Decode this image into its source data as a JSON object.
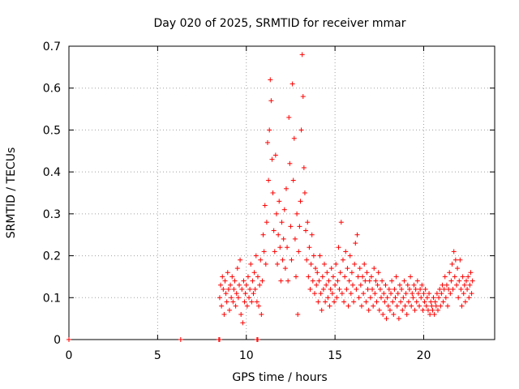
{
  "chart_data": {
    "type": "scatter",
    "title": "Day 020 of 2025, SRMTID for receiver mmar",
    "xlabel": "GPS time / hours",
    "ylabel": "SRMTID / TECUs",
    "xlim": [
      0,
      24
    ],
    "ylim": [
      0,
      0.7
    ],
    "xticks": [
      0,
      5,
      10,
      15,
      20
    ],
    "yticks": [
      0,
      0.1,
      0.2,
      0.3,
      0.4,
      0.5,
      0.6,
      0.7
    ],
    "ytick_labels": [
      "0",
      "0.1",
      "0.2",
      "0.3",
      "0.4",
      "0.5",
      "0.6",
      "0.7"
    ],
    "grid": true,
    "marker": "+",
    "color": "#ff0000",
    "series": [
      {
        "name": "SRMTID",
        "points": [
          [
            0.0,
            0.0
          ],
          [
            6.3,
            0.0
          ],
          [
            8.45,
            0.0
          ],
          [
            8.5,
            0.0
          ],
          [
            10.6,
            0.0
          ],
          [
            10.65,
            0.0
          ],
          [
            8.5,
            0.1
          ],
          [
            8.55,
            0.13
          ],
          [
            8.6,
            0.08
          ],
          [
            8.65,
            0.15
          ],
          [
            8.7,
            0.12
          ],
          [
            8.75,
            0.06
          ],
          [
            8.8,
            0.14
          ],
          [
            8.85,
            0.11
          ],
          [
            8.9,
            0.09
          ],
          [
            8.95,
            0.16
          ],
          [
            9.0,
            0.12
          ],
          [
            9.05,
            0.07
          ],
          [
            9.1,
            0.13
          ],
          [
            9.15,
            0.1
          ],
          [
            9.2,
            0.15
          ],
          [
            9.25,
            0.09
          ],
          [
            9.3,
            0.12
          ],
          [
            9.35,
            0.14
          ],
          [
            9.4,
            0.08
          ],
          [
            9.45,
            0.11
          ],
          [
            9.5,
            0.17
          ],
          [
            9.55,
            0.1
          ],
          [
            9.6,
            0.13
          ],
          [
            9.65,
            0.19
          ],
          [
            9.7,
            0.06
          ],
          [
            9.75,
            0.12
          ],
          [
            9.8,
            0.04
          ],
          [
            9.85,
            0.14
          ],
          [
            9.9,
            0.09
          ],
          [
            9.95,
            0.11
          ],
          [
            10.0,
            0.13
          ],
          [
            10.05,
            0.08
          ],
          [
            10.1,
            0.15
          ],
          [
            10.15,
            0.1
          ],
          [
            10.2,
            0.12
          ],
          [
            10.25,
            0.18
          ],
          [
            10.3,
            0.09
          ],
          [
            10.35,
            0.14
          ],
          [
            10.4,
            0.11
          ],
          [
            10.45,
            0.16
          ],
          [
            10.5,
            0.12
          ],
          [
            10.55,
            0.2
          ],
          [
            10.6,
            0.09
          ],
          [
            10.65,
            0.15
          ],
          [
            10.7,
            0.08
          ],
          [
            10.75,
            0.13
          ],
          [
            10.8,
            0.19
          ],
          [
            10.85,
            0.06
          ],
          [
            10.9,
            0.14
          ],
          [
            10.95,
            0.25
          ],
          [
            11.0,
            0.21
          ],
          [
            11.05,
            0.32
          ],
          [
            11.1,
            0.18
          ],
          [
            11.15,
            0.28
          ],
          [
            11.2,
            0.47
          ],
          [
            11.25,
            0.38
          ],
          [
            11.3,
            0.5
          ],
          [
            11.35,
            0.62
          ],
          [
            11.4,
            0.57
          ],
          [
            11.45,
            0.43
          ],
          [
            11.5,
            0.35
          ],
          [
            11.55,
            0.26
          ],
          [
            11.6,
            0.21
          ],
          [
            11.65,
            0.44
          ],
          [
            11.7,
            0.3
          ],
          [
            11.75,
            0.18
          ],
          [
            11.8,
            0.25
          ],
          [
            11.85,
            0.33
          ],
          [
            11.9,
            0.22
          ],
          [
            11.95,
            0.14
          ],
          [
            12.0,
            0.28
          ],
          [
            12.05,
            0.19
          ],
          [
            12.1,
            0.24
          ],
          [
            12.15,
            0.31
          ],
          [
            12.2,
            0.17
          ],
          [
            12.25,
            0.36
          ],
          [
            12.3,
            0.22
          ],
          [
            12.35,
            0.14
          ],
          [
            12.4,
            0.53
          ],
          [
            12.45,
            0.42
          ],
          [
            12.5,
            0.27
          ],
          [
            12.55,
            0.19
          ],
          [
            12.6,
            0.61
          ],
          [
            12.65,
            0.38
          ],
          [
            12.7,
            0.48
          ],
          [
            12.75,
            0.24
          ],
          [
            12.8,
            0.15
          ],
          [
            12.85,
            0.3
          ],
          [
            12.9,
            0.06
          ],
          [
            12.95,
            0.21
          ],
          [
            13.0,
            0.27
          ],
          [
            13.05,
            0.33
          ],
          [
            13.1,
            0.5
          ],
          [
            13.15,
            0.68
          ],
          [
            13.2,
            0.58
          ],
          [
            13.25,
            0.41
          ],
          [
            13.3,
            0.35
          ],
          [
            13.35,
            0.26
          ],
          [
            13.4,
            0.19
          ],
          [
            13.45,
            0.28
          ],
          [
            13.5,
            0.15
          ],
          [
            13.55,
            0.22
          ],
          [
            13.6,
            0.12
          ],
          [
            13.65,
            0.18
          ],
          [
            13.7,
            0.25
          ],
          [
            13.75,
            0.14
          ],
          [
            13.8,
            0.2
          ],
          [
            13.85,
            0.11
          ],
          [
            13.9,
            0.17
          ],
          [
            13.95,
            0.13
          ],
          [
            14.0,
            0.16
          ],
          [
            14.05,
            0.09
          ],
          [
            14.1,
            0.14
          ],
          [
            14.15,
            0.2
          ],
          [
            14.2,
            0.11
          ],
          [
            14.25,
            0.07
          ],
          [
            14.3,
            0.15
          ],
          [
            14.35,
            0.12
          ],
          [
            14.4,
            0.18
          ],
          [
            14.45,
            0.09
          ],
          [
            14.5,
            0.13
          ],
          [
            14.55,
            0.16
          ],
          [
            14.6,
            0.1
          ],
          [
            14.65,
            0.14
          ],
          [
            14.7,
            0.08
          ],
          [
            14.75,
            0.12
          ],
          [
            14.8,
            0.17
          ],
          [
            14.85,
            0.11
          ],
          [
            14.9,
            0.15
          ],
          [
            14.95,
            0.09
          ],
          [
            15.0,
            0.13
          ],
          [
            15.05,
            0.18
          ],
          [
            15.1,
            0.1
          ],
          [
            15.15,
            0.14
          ],
          [
            15.2,
            0.22
          ],
          [
            15.25,
            0.12
          ],
          [
            15.3,
            0.16
          ],
          [
            15.35,
            0.28
          ],
          [
            15.4,
            0.11
          ],
          [
            15.45,
            0.19
          ],
          [
            15.5,
            0.09
          ],
          [
            15.55,
            0.15
          ],
          [
            15.6,
            0.21
          ],
          [
            15.65,
            0.12
          ],
          [
            15.7,
            0.17
          ],
          [
            15.75,
            0.08
          ],
          [
            15.8,
            0.14
          ],
          [
            15.85,
            0.2
          ],
          [
            15.9,
            0.11
          ],
          [
            15.95,
            0.16
          ],
          [
            16.0,
            0.13
          ],
          [
            16.05,
            0.09
          ],
          [
            16.1,
            0.18
          ],
          [
            16.15,
            0.23
          ],
          [
            16.2,
            0.12
          ],
          [
            16.25,
            0.25
          ],
          [
            16.3,
            0.15
          ],
          [
            16.35,
            0.1
          ],
          [
            16.4,
            0.17
          ],
          [
            16.45,
            0.13
          ],
          [
            16.5,
            0.08
          ],
          [
            16.55,
            0.15
          ],
          [
            16.6,
            0.11
          ],
          [
            16.65,
            0.18
          ],
          [
            16.7,
            0.14
          ],
          [
            16.75,
            0.09
          ],
          [
            16.8,
            0.16
          ],
          [
            16.85,
            0.12
          ],
          [
            16.9,
            0.07
          ],
          [
            16.95,
            0.14
          ],
          [
            17.0,
            0.1
          ],
          [
            17.05,
            0.15
          ],
          [
            17.1,
            0.12
          ],
          [
            17.15,
            0.08
          ],
          [
            17.2,
            0.17
          ],
          [
            17.25,
            0.11
          ],
          [
            17.3,
            0.14
          ],
          [
            17.35,
            0.09
          ],
          [
            17.4,
            0.13
          ],
          [
            17.45,
            0.16
          ],
          [
            17.5,
            0.07
          ],
          [
            17.55,
            0.12
          ],
          [
            17.6,
            0.1
          ],
          [
            17.65,
            0.14
          ],
          [
            17.7,
            0.06
          ],
          [
            17.75,
            0.11
          ],
          [
            17.8,
            0.09
          ],
          [
            17.85,
            0.13
          ],
          [
            17.9,
            0.05
          ],
          [
            17.95,
            0.1
          ],
          [
            18.0,
            0.08
          ],
          [
            18.05,
            0.12
          ],
          [
            18.1,
            0.07
          ],
          [
            18.15,
            0.11
          ],
          [
            18.2,
            0.14
          ],
          [
            18.25,
            0.09
          ],
          [
            18.3,
            0.06
          ],
          [
            18.35,
            0.12
          ],
          [
            18.4,
            0.1
          ],
          [
            18.45,
            0.15
          ],
          [
            18.5,
            0.08
          ],
          [
            18.55,
            0.11
          ],
          [
            18.6,
            0.05
          ],
          [
            18.65,
            0.13
          ],
          [
            18.7,
            0.09
          ],
          [
            18.75,
            0.12
          ],
          [
            18.8,
            0.07
          ],
          [
            18.85,
            0.1
          ],
          [
            18.9,
            0.14
          ],
          [
            18.95,
            0.08
          ],
          [
            19.0,
            0.11
          ],
          [
            19.05,
            0.06
          ],
          [
            19.1,
            0.13
          ],
          [
            19.15,
            0.09
          ],
          [
            19.2,
            0.12
          ],
          [
            19.25,
            0.15
          ],
          [
            19.3,
            0.08
          ],
          [
            19.35,
            0.11
          ],
          [
            19.4,
            0.1
          ],
          [
            19.45,
            0.13
          ],
          [
            19.5,
            0.07
          ],
          [
            19.55,
            0.12
          ],
          [
            19.6,
            0.09
          ],
          [
            19.65,
            0.14
          ],
          [
            19.7,
            0.11
          ],
          [
            19.75,
            0.08
          ],
          [
            19.8,
            0.12
          ],
          [
            19.85,
            0.1
          ],
          [
            19.9,
            0.13
          ],
          [
            19.95,
            0.07
          ],
          [
            20.0,
            0.11
          ],
          [
            20.05,
            0.09
          ],
          [
            20.1,
            0.12
          ],
          [
            20.15,
            0.08
          ],
          [
            20.2,
            0.1
          ],
          [
            20.25,
            0.07
          ],
          [
            20.3,
            0.11
          ],
          [
            20.35,
            0.06
          ],
          [
            20.4,
            0.09
          ],
          [
            20.45,
            0.08
          ],
          [
            20.5,
            0.07
          ],
          [
            20.55,
            0.1
          ],
          [
            20.6,
            0.06
          ],
          [
            20.65,
            0.09
          ],
          [
            20.7,
            0.08
          ],
          [
            20.75,
            0.11
          ],
          [
            20.8,
            0.07
          ],
          [
            20.85,
            0.1
          ],
          [
            20.9,
            0.12
          ],
          [
            20.95,
            0.08
          ],
          [
            21.0,
            0.11
          ],
          [
            21.05,
            0.13
          ],
          [
            21.1,
            0.09
          ],
          [
            21.15,
            0.12
          ],
          [
            21.2,
            0.15
          ],
          [
            21.25,
            0.1
          ],
          [
            21.3,
            0.13
          ],
          [
            21.35,
            0.08
          ],
          [
            21.4,
            0.12
          ],
          [
            21.45,
            0.16
          ],
          [
            21.5,
            0.11
          ],
          [
            21.55,
            0.14
          ],
          [
            21.6,
            0.18
          ],
          [
            21.65,
            0.12
          ],
          [
            21.7,
            0.21
          ],
          [
            21.75,
            0.15
          ],
          [
            21.8,
            0.19
          ],
          [
            21.85,
            0.13
          ],
          [
            21.9,
            0.17
          ],
          [
            21.95,
            0.1
          ],
          [
            22.0,
            0.14
          ],
          [
            22.05,
            0.19
          ],
          [
            22.1,
            0.12
          ],
          [
            22.15,
            0.08
          ],
          [
            22.2,
            0.15
          ],
          [
            22.25,
            0.11
          ],
          [
            22.3,
            0.13
          ],
          [
            22.35,
            0.09
          ],
          [
            22.4,
            0.14
          ],
          [
            22.45,
            0.12
          ],
          [
            22.5,
            0.15
          ],
          [
            22.55,
            0.1
          ],
          [
            22.6,
            0.13
          ],
          [
            22.65,
            0.16
          ],
          [
            22.7,
            0.11
          ],
          [
            22.75,
            0.14
          ]
        ]
      }
    ]
  }
}
